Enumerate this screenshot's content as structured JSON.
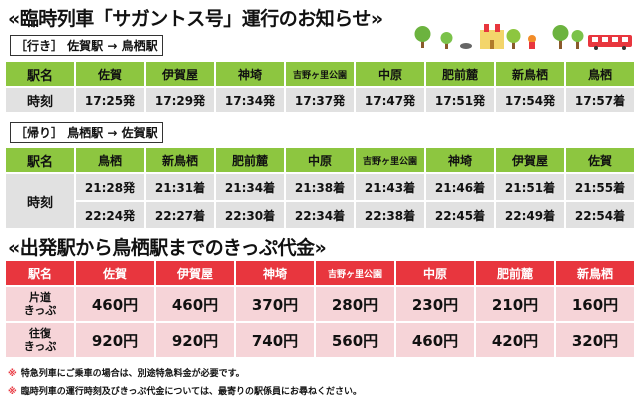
{
  "title": "«臨時列車「サガントス号」運行のお知らせ»",
  "outbound": {
    "label": "［行き］ 佐賀駅 → 鳥栖駅",
    "header_label": "駅名",
    "stations": [
      "佐賀",
      "伊賀屋",
      "神埼",
      "吉野ヶ里公園",
      "中原",
      "肥前麓",
      "新鳥栖",
      "鳥栖"
    ],
    "row_label": "時刻",
    "times": [
      "17:25発",
      "17:29発",
      "17:34発",
      "17:37発",
      "17:47発",
      "17:51発",
      "17:54発",
      "17:57着"
    ]
  },
  "return": {
    "label": "［帰り］ 鳥栖駅 → 佐賀駅",
    "header_label": "駅名",
    "stations": [
      "鳥栖",
      "新鳥栖",
      "肥前麓",
      "中原",
      "吉野ヶ里公園",
      "神埼",
      "伊賀屋",
      "佐賀"
    ],
    "row_label": "時刻",
    "times1": [
      "21:28発",
      "21:31着",
      "21:34着",
      "21:38着",
      "21:43着",
      "21:46着",
      "21:51着",
      "21:55着"
    ],
    "times2": [
      "22:24発",
      "22:27着",
      "22:30着",
      "22:34着",
      "22:38着",
      "22:45着",
      "22:49着",
      "22:54着"
    ]
  },
  "fare": {
    "title": "«出発駅から鳥栖駅までのきっぷ代金»",
    "header_label": "駅名",
    "stations": [
      "佐賀",
      "伊賀屋",
      "神埼",
      "吉野ヶ里公園",
      "中原",
      "肥前麓",
      "新鳥栖"
    ],
    "oneway_label": "片道\nきっぷ",
    "oneway": [
      "460円",
      "460円",
      "370円",
      "280円",
      "230円",
      "210円",
      "160円"
    ],
    "round_label": "往復\nきっぷ",
    "round": [
      "920円",
      "920円",
      "740円",
      "560円",
      "460円",
      "420円",
      "320円"
    ]
  },
  "notes": [
    {
      "mark": "※",
      "text": "特急列車にご乗車の場合は、別途特急料金が必要です。"
    },
    {
      "mark": "※",
      "text": "臨時列車の運行時刻及びきっぷ代金については、最寄りの駅係員にお尋ねください。"
    }
  ],
  "colors": {
    "green": "#8dc640",
    "red": "#e8363e",
    "gray": "#e1e1e1",
    "pink": "#f6d4d8"
  }
}
